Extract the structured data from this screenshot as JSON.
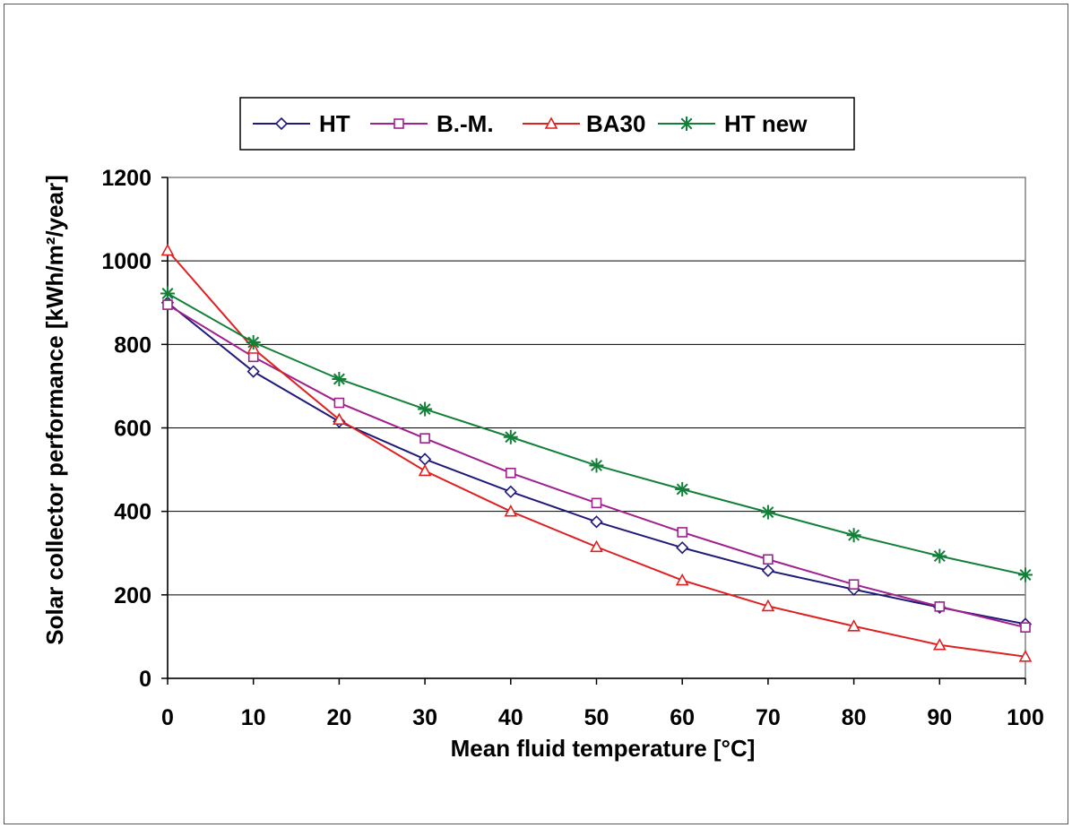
{
  "chart_data": {
    "type": "line",
    "title": "",
    "xlabel": "Mean fluid temperature  [°C]",
    "ylabel": "Solar collector performance  [kWh/m²/year]",
    "x": [
      0,
      10,
      20,
      30,
      40,
      50,
      60,
      70,
      80,
      90,
      100
    ],
    "xlim": [
      0,
      100
    ],
    "ylim": [
      0,
      1200
    ],
    "x_ticks": [
      "0",
      "10",
      "20",
      "30",
      "40",
      "50",
      "60",
      "70",
      "80",
      "90",
      "100"
    ],
    "y_ticks": [
      "0",
      "200",
      "400",
      "600",
      "800",
      "1000",
      "1200"
    ],
    "grid": "horizontal",
    "legend_position": "top",
    "series": [
      {
        "name": "HT",
        "color": "#1f1a7a",
        "marker": "diamond",
        "values": [
          900,
          735,
          615,
          525,
          447,
          375,
          313,
          258,
          213,
          170,
          130
        ]
      },
      {
        "name": "B.-M.",
        "color": "#a0208f",
        "marker": "square",
        "values": [
          895,
          770,
          660,
          575,
          492,
          420,
          350,
          285,
          225,
          172,
          122
        ]
      },
      {
        "name": "BA30",
        "color": "#e02020",
        "marker": "triangle",
        "values": [
          1025,
          790,
          620,
          497,
          400,
          315,
          235,
          173,
          125,
          80,
          52
        ]
      },
      {
        "name": "HT new",
        "color": "#128038",
        "marker": "star",
        "values": [
          922,
          805,
          717,
          645,
          578,
          510,
          453,
          398,
          343,
          293,
          248
        ]
      }
    ]
  }
}
